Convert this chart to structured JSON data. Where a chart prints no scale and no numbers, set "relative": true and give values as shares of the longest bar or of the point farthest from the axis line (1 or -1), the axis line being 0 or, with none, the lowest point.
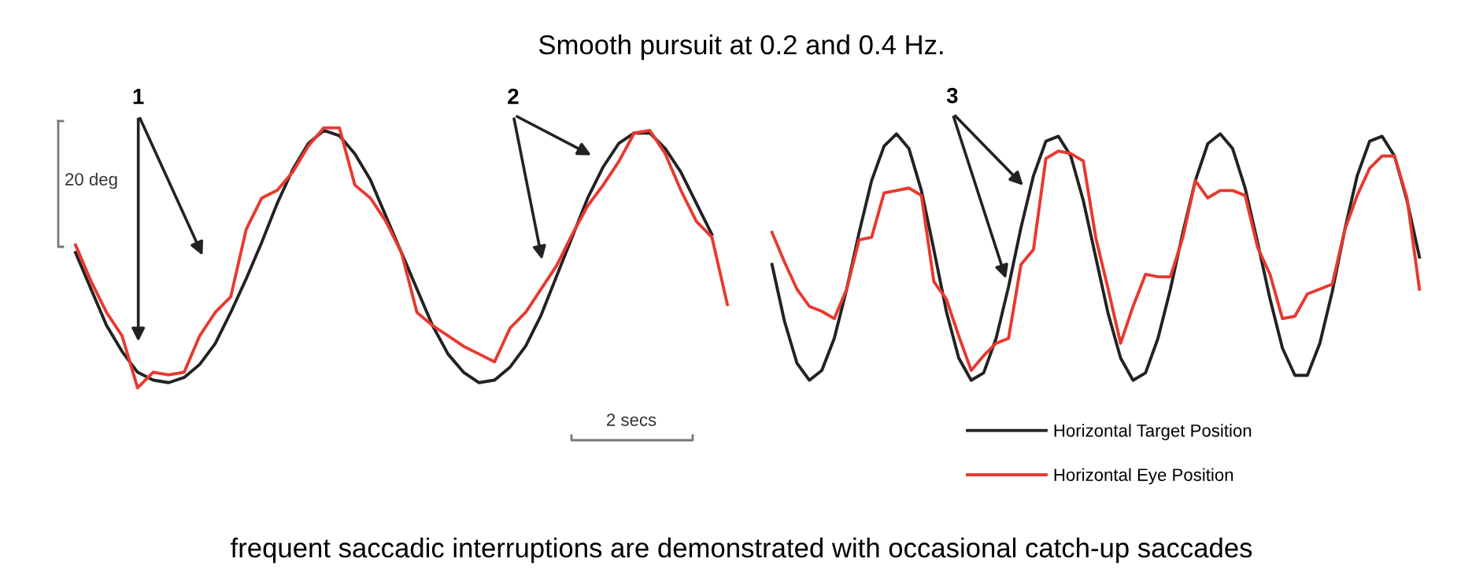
{
  "chart_data": [
    {
      "type": "line",
      "title": "Smooth pursuit at 0.2 and 0.4 Hz.",
      "relative": true,
      "legend": false,
      "categories": [
        null,
        null,
        null,
        null,
        null,
        null,
        null,
        null,
        null,
        null,
        null,
        null,
        null,
        null,
        null,
        null,
        null,
        null,
        null,
        null,
        null,
        null,
        null,
        null,
        null,
        null,
        null,
        null,
        null,
        null,
        null,
        null,
        null,
        null,
        null,
        null,
        null,
        null,
        null,
        null,
        null,
        null,
        null
      ],
      "series": [
        {
          "color": "#222222",
          "values": [
            0.52,
            0.38,
            0.24,
            0.14,
            0.06,
            0.03,
            0.02,
            0.04,
            0.09,
            0.17,
            0.29,
            0.42,
            0.56,
            0.71,
            0.84,
            0.94,
            0.99,
            0.97,
            0.9,
            0.8,
            0.66,
            0.52,
            0.38,
            0.24,
            0.13,
            0.06,
            0.02,
            0.03,
            0.08,
            0.16,
            0.28,
            0.43,
            0.58,
            0.73,
            0.85,
            0.94,
            0.98,
            0.98,
            0.92,
            0.83,
            0.71,
            0.59,
            null
          ]
        },
        {
          "color": "#e8392f",
          "values": [
            0.55,
            0.41,
            0.29,
            0.2,
            0.0,
            0.06,
            0.05,
            0.06,
            0.2,
            0.29,
            0.35,
            0.61,
            0.73,
            0.76,
            0.83,
            0.93,
            1.0,
            1.0,
            0.78,
            0.73,
            0.64,
            0.52,
            0.29,
            0.24,
            0.2,
            0.16,
            0.13,
            0.1,
            0.23,
            0.29,
            0.38,
            0.47,
            0.59,
            0.7,
            0.78,
            0.87,
            0.98,
            0.99,
            0.9,
            0.76,
            0.64,
            0.58,
            0.32
          ]
        }
      ],
      "annotations": [
        "1",
        "2",
        "20 deg",
        "2 secs",
        "frequent saccadic interruptions are demonstrated with occasional catch-up saccades"
      ]
    },
    {
      "type": "line",
      "relative": true,
      "legend": "bottom right",
      "categories": [
        null,
        null,
        null,
        null,
        null,
        null,
        null,
        null,
        null,
        null,
        null,
        null,
        null,
        null,
        null,
        null,
        null,
        null,
        null,
        null,
        null,
        null,
        null,
        null,
        null,
        null,
        null,
        null,
        null,
        null,
        null,
        null,
        null,
        null,
        null,
        null,
        null,
        null,
        null,
        null,
        null,
        null,
        null,
        null,
        null,
        null,
        null,
        null,
        null,
        null,
        null,
        null,
        null
      ],
      "series": [
        {
          "name": "Horizontal Target Position",
          "color": "#222222",
          "values": [
            0.47,
            0.24,
            0.07,
            0.0,
            0.04,
            0.17,
            0.37,
            0.6,
            0.81,
            0.95,
            1.0,
            0.94,
            0.77,
            0.53,
            0.28,
            0.09,
            0.0,
            0.03,
            0.17,
            0.38,
            0.62,
            0.83,
            0.97,
            0.99,
            0.91,
            0.73,
            0.5,
            0.27,
            0.09,
            0.0,
            0.03,
            0.17,
            0.37,
            0.6,
            0.81,
            0.96,
            1.0,
            0.94,
            0.78,
            0.56,
            0.33,
            0.13,
            0.02,
            0.02,
            0.15,
            0.36,
            0.61,
            0.83,
            0.97,
            0.99,
            0.91,
            0.73,
            0.5
          ]
        },
        {
          "name": "Horizontal Eye Position",
          "color": "#e8392f",
          "values": [
            0.6,
            0.48,
            0.37,
            0.3,
            0.28,
            0.25,
            0.37,
            0.57,
            0.58,
            0.76,
            0.77,
            0.78,
            0.75,
            0.4,
            0.33,
            0.18,
            0.04,
            0.1,
            0.15,
            0.17,
            0.47,
            0.53,
            0.9,
            0.93,
            0.92,
            0.89,
            0.58,
            0.37,
            0.15,
            0.3,
            0.43,
            0.42,
            0.42,
            0.58,
            0.81,
            0.74,
            0.77,
            0.77,
            0.75,
            0.54,
            0.43,
            0.25,
            0.26,
            0.35,
            0.37,
            0.39,
            0.61,
            0.75,
            0.86,
            0.91,
            0.91,
            0.74,
            0.37
          ]
        }
      ],
      "annotations": [
        "3"
      ]
    }
  ]
}
